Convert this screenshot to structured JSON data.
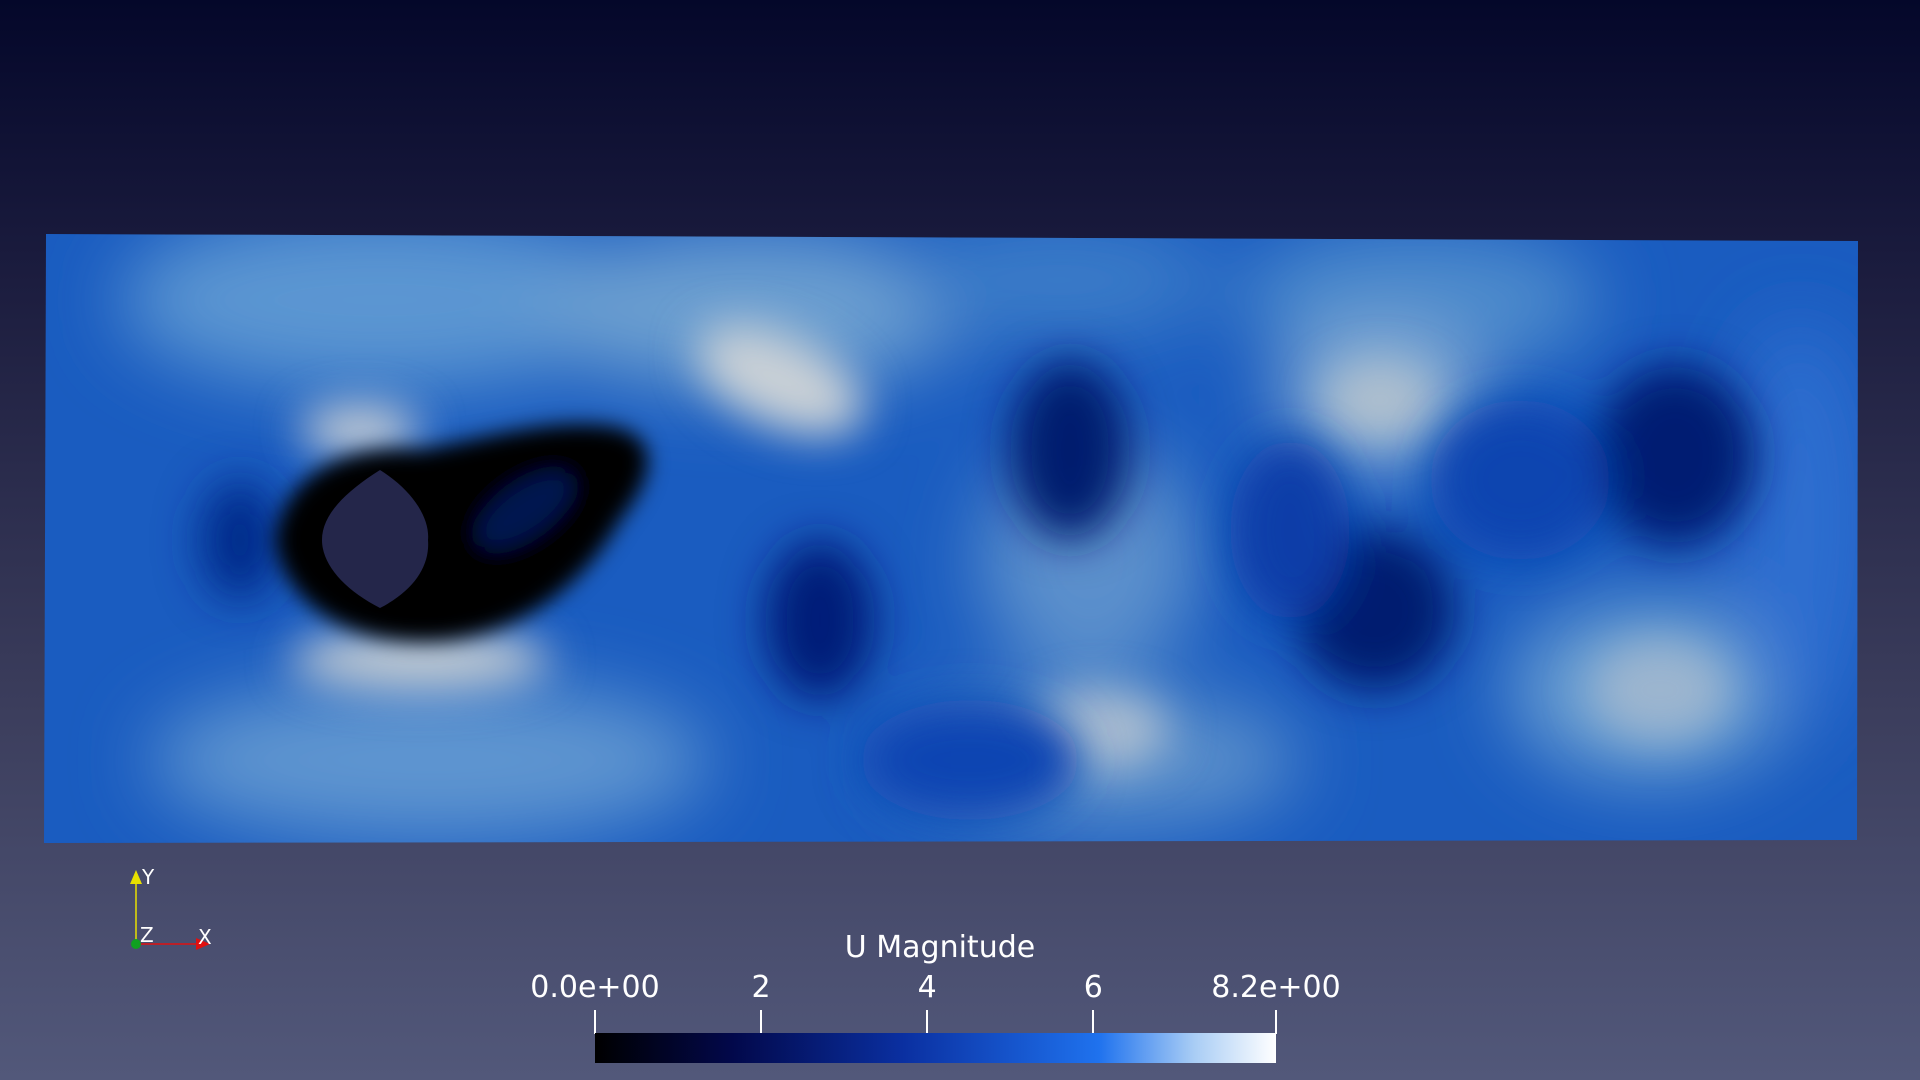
{
  "colorbar": {
    "title": "U Magnitude",
    "min": 0,
    "max": 8.2,
    "ticks": [
      {
        "value": 0,
        "label": "0.0e+00"
      },
      {
        "value": 2,
        "label": "2"
      },
      {
        "value": 4,
        "label": "4"
      },
      {
        "value": 6,
        "label": "6"
      },
      {
        "value": 8.2,
        "label": "8.2e+00"
      }
    ],
    "colormap": [
      "#000000",
      "#02084a",
      "#0a2fa0",
      "#1f72ee",
      "#a9cdf5",
      "#ffffff"
    ]
  },
  "orientation_axes": {
    "y_label": "Y",
    "z_label": "Z",
    "x_label": "X",
    "y_color": "#e8e000",
    "x_color": "#e01010",
    "z_color": "#10a020"
  },
  "field": {
    "background_color": "#1a5cc0",
    "obstacle_color": "#24264a"
  }
}
